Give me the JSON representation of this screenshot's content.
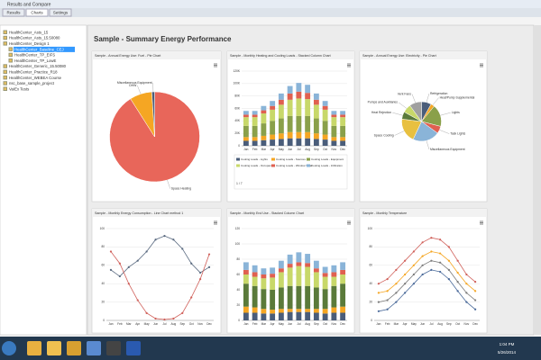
{
  "window": {
    "title": "Results and Compare",
    "tabs": [
      "Results",
      "Charts",
      "Settings"
    ]
  },
  "tree": [
    "HealthCenter_Asts_15",
    "HealthCenter_Asts_15.50080",
    "HealthCenter_Design 1",
    "HealthCenter_Baseline_CEJ",
    "HealthCenter_TP_EIFS",
    "HealthCenter_TP_LowE",
    "HealthCenter_Generic_15.50080",
    "HealthCenter_Practice_R18",
    "HealthCenter_WEBEA Course",
    "nsc_base_sample_project",
    "VaIEx Tests"
  ],
  "page_title": "Sample - Summary Energy Performance",
  "charts": [
    {
      "type": "pie",
      "title": "Sample - Annual Energy Use: Fuel - Pie Chart",
      "labels": [
        "Space Heating",
        "DHW",
        "Miscellaneous Equipment"
      ],
      "values": [
        91,
        8,
        1
      ],
      "colors": [
        "#e8665a",
        "#f5a623",
        "#4a5d7a"
      ]
    },
    {
      "type": "stacked",
      "title": "Sample - Monthly Heating and Cooling Loads - Stacked Column Chart",
      "categories": [
        "Jan",
        "Feb",
        "Mar",
        "Apr",
        "May",
        "Jun",
        "Jul",
        "Aug",
        "Sep",
        "Oct",
        "Nov",
        "Dec"
      ],
      "ylim": [
        0,
        120
      ],
      "yticks": [
        0,
        {
          "value": 20,
          "label": "20K"
        },
        {
          "value": 40,
          "label": "40K"
        },
        {
          "value": 60,
          "label": "60K"
        },
        {
          "value": 80,
          "label": "80K"
        },
        {
          "value": 100,
          "label": "100K"
        },
        {
          "value": 120,
          "label": "120K"
        }
      ],
      "series": [
        {
          "name": "Cooling Loads - Lights",
          "color": "#4a5d7a",
          "values": [
            8,
            8,
            9,
            10,
            11,
            12,
            12,
            12,
            11,
            10,
            8,
            8
          ]
        },
        {
          "name": "Cooling Loads - Sources",
          "color": "#f5a623",
          "values": [
            6,
            6,
            7,
            8,
            9,
            10,
            10,
            10,
            9,
            8,
            6,
            6
          ]
        },
        {
          "name": "Cooling Loads - Equipment",
          "color": "#8aa04a",
          "values": [
            18,
            18,
            20,
            22,
            24,
            26,
            26,
            26,
            24,
            22,
            18,
            18
          ]
        },
        {
          "name": "Cooling Loads - Occupants",
          "color": "#c8d86a",
          "values": [
            14,
            14,
            16,
            18,
            22,
            26,
            28,
            27,
            22,
            18,
            14,
            14
          ]
        },
        {
          "name": "Cooling Loads - Window Solar",
          "color": "#e06050",
          "values": [
            4,
            4,
            5,
            6,
            8,
            10,
            11,
            10,
            8,
            6,
            4,
            4
          ]
        },
        {
          "name": "Cooling Loads - Infiltration",
          "color": "#8ab4d8",
          "values": [
            6,
            6,
            7,
            8,
            10,
            12,
            14,
            13,
            10,
            8,
            6,
            6
          ]
        }
      ],
      "pager": "1 / 7"
    },
    {
      "type": "pie",
      "title": "Sample - Annual Energy Use: Electricity - Pie Chart",
      "labels": [
        "Refrigeration",
        "Heat/Pump Supplemental",
        "Lights",
        "Task Lights",
        "Miscellaneous Equipment",
        "Space Cooling",
        "Heat Rejection",
        "Pumps and Auxiliaries",
        "Vent Fans"
      ],
      "values": [
        8,
        3,
        18,
        6,
        22,
        20,
        6,
        7,
        10
      ],
      "colors": [
        "#4a5d7a",
        "#f5a623",
        "#8aa04a",
        "#e06050",
        "#8ab4d8",
        "#e8c040",
        "#5a7a3a",
        "#c8d86a",
        "#a0a0a0"
      ]
    },
    {
      "type": "line",
      "title": "Sample - Monthly Energy Consumption - Line Chart method 1",
      "categories": [
        "Jan",
        "Feb",
        "Mar",
        "Apr",
        "May",
        "Jun",
        "Jul",
        "Aug",
        "Sep",
        "Oct",
        "Nov",
        "Dec"
      ],
      "ylim": [
        0,
        100
      ],
      "yticks": [
        0,
        20,
        40,
        60,
        80,
        100
      ],
      "series": [
        {
          "color": "#5a6a80",
          "values": [
            55,
            48,
            58,
            65,
            75,
            88,
            92,
            88,
            78,
            62,
            52,
            58
          ]
        },
        {
          "color": "#d0605a",
          "values": [
            75,
            62,
            40,
            22,
            8,
            2,
            1,
            2,
            8,
            25,
            45,
            72
          ]
        }
      ]
    },
    {
      "type": "stacked",
      "title": "Sample - Monthly End Use - Stacked Column Chart",
      "categories": [
        "Jan",
        "Feb",
        "Mar",
        "Apr",
        "May",
        "Jun",
        "Jul",
        "Aug",
        "Sep",
        "Oct",
        "Nov",
        "Dec"
      ],
      "ylim": [
        0,
        120
      ],
      "yticks": [
        0,
        20,
        40,
        60,
        80,
        100,
        120
      ],
      "series": [
        {
          "color": "#4a5d7a",
          "values": [
            10,
            10,
            9,
            9,
            10,
            11,
            11,
            11,
            10,
            9,
            10,
            10
          ]
        },
        {
          "color": "#f5a623",
          "values": [
            8,
            7,
            6,
            5,
            5,
            4,
            4,
            4,
            5,
            6,
            7,
            8
          ]
        },
        {
          "color": "#5a7a3a",
          "values": [
            30,
            28,
            26,
            26,
            28,
            30,
            30,
            30,
            28,
            26,
            28,
            30
          ]
        },
        {
          "color": "#c8d86a",
          "values": [
            12,
            12,
            14,
            16,
            20,
            24,
            26,
            25,
            20,
            16,
            12,
            12
          ]
        },
        {
          "color": "#e06050",
          "values": [
            6,
            6,
            5,
            5,
            5,
            5,
            5,
            5,
            5,
            5,
            6,
            6
          ]
        },
        {
          "color": "#8ab4d8",
          "values": [
            10,
            9,
            8,
            8,
            10,
            12,
            13,
            12,
            10,
            8,
            9,
            10
          ]
        }
      ]
    },
    {
      "type": "line",
      "title": "Sample - Monthly Temperature",
      "categories": [
        "Jan",
        "Feb",
        "Mar",
        "Apr",
        "May",
        "Jun",
        "Jul",
        "Aug",
        "Sep",
        "Oct",
        "Nov",
        "Dec"
      ],
      "ylim": [
        0,
        100
      ],
      "yticks": [
        0,
        20,
        40,
        60,
        80,
        100
      ],
      "series": [
        {
          "color": "#d0605a",
          "values": [
            40,
            45,
            55,
            65,
            75,
            85,
            90,
            88,
            80,
            65,
            50,
            42
          ]
        },
        {
          "color": "#f5a623",
          "values": [
            30,
            32,
            40,
            50,
            60,
            70,
            75,
            73,
            65,
            52,
            40,
            32
          ]
        },
        {
          "color": "#7a7a7a",
          "values": [
            20,
            22,
            30,
            40,
            50,
            60,
            65,
            63,
            55,
            42,
            30,
            22
          ]
        },
        {
          "color": "#4a6a9a",
          "values": [
            10,
            12,
            20,
            30,
            40,
            50,
            55,
            53,
            45,
            32,
            20,
            12
          ]
        }
      ]
    }
  ],
  "taskbar": {
    "time": "1:04 PM",
    "date": "5/26/2014"
  }
}
